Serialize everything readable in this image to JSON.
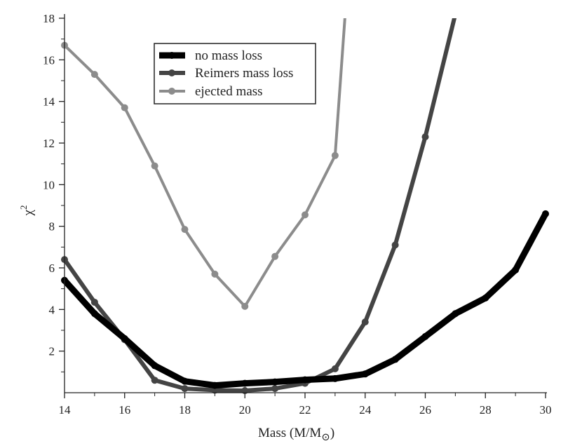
{
  "chart_data": {
    "type": "line",
    "title": "",
    "xlabel": "Mass (M/M",
    "xlabel_sub": "⊙",
    "xlabel_close": ")",
    "ylabel": "χ",
    "ylabel_sup": "2",
    "xlim": [
      14,
      30
    ],
    "ylim": [
      0,
      18
    ],
    "x_ticks": [
      14,
      16,
      18,
      20,
      22,
      24,
      26,
      28,
      30
    ],
    "y_ticks": [
      2,
      4,
      6,
      8,
      10,
      12,
      14,
      16,
      18
    ],
    "legend_position": "top-center",
    "series": [
      {
        "name": "no mass loss",
        "color": "#000000",
        "line_style": "thick",
        "x": [
          14,
          15,
          16,
          17,
          18,
          19,
          20,
          21,
          22,
          23,
          24,
          25,
          26,
          27,
          28,
          29,
          30
        ],
        "values": [
          5.4,
          3.8,
          2.6,
          1.3,
          0.55,
          0.35,
          0.45,
          0.52,
          0.62,
          0.68,
          0.9,
          1.6,
          2.7,
          3.8,
          4.55,
          5.9,
          8.6
        ]
      },
      {
        "name": "Reimers mass loss",
        "color": "#444444",
        "line_style": "medium",
        "x": [
          14,
          15,
          16,
          17,
          18,
          19,
          20,
          21,
          22,
          23,
          24,
          25,
          26,
          27
        ],
        "values": [
          6.4,
          4.35,
          2.55,
          0.6,
          0.2,
          0.12,
          0.1,
          0.2,
          0.45,
          1.15,
          3.4,
          7.1,
          12.3,
          18.2
        ]
      },
      {
        "name": "ejected mass",
        "color": "#8c8c8c",
        "line_style": "thin",
        "x": [
          14,
          15,
          16,
          17,
          18,
          19,
          20,
          21,
          22,
          23,
          23.35
        ],
        "values": [
          16.7,
          15.3,
          13.7,
          10.9,
          7.85,
          5.7,
          4.15,
          6.55,
          8.55,
          11.4,
          18.5
        ],
        "marker_count": 10
      }
    ]
  }
}
